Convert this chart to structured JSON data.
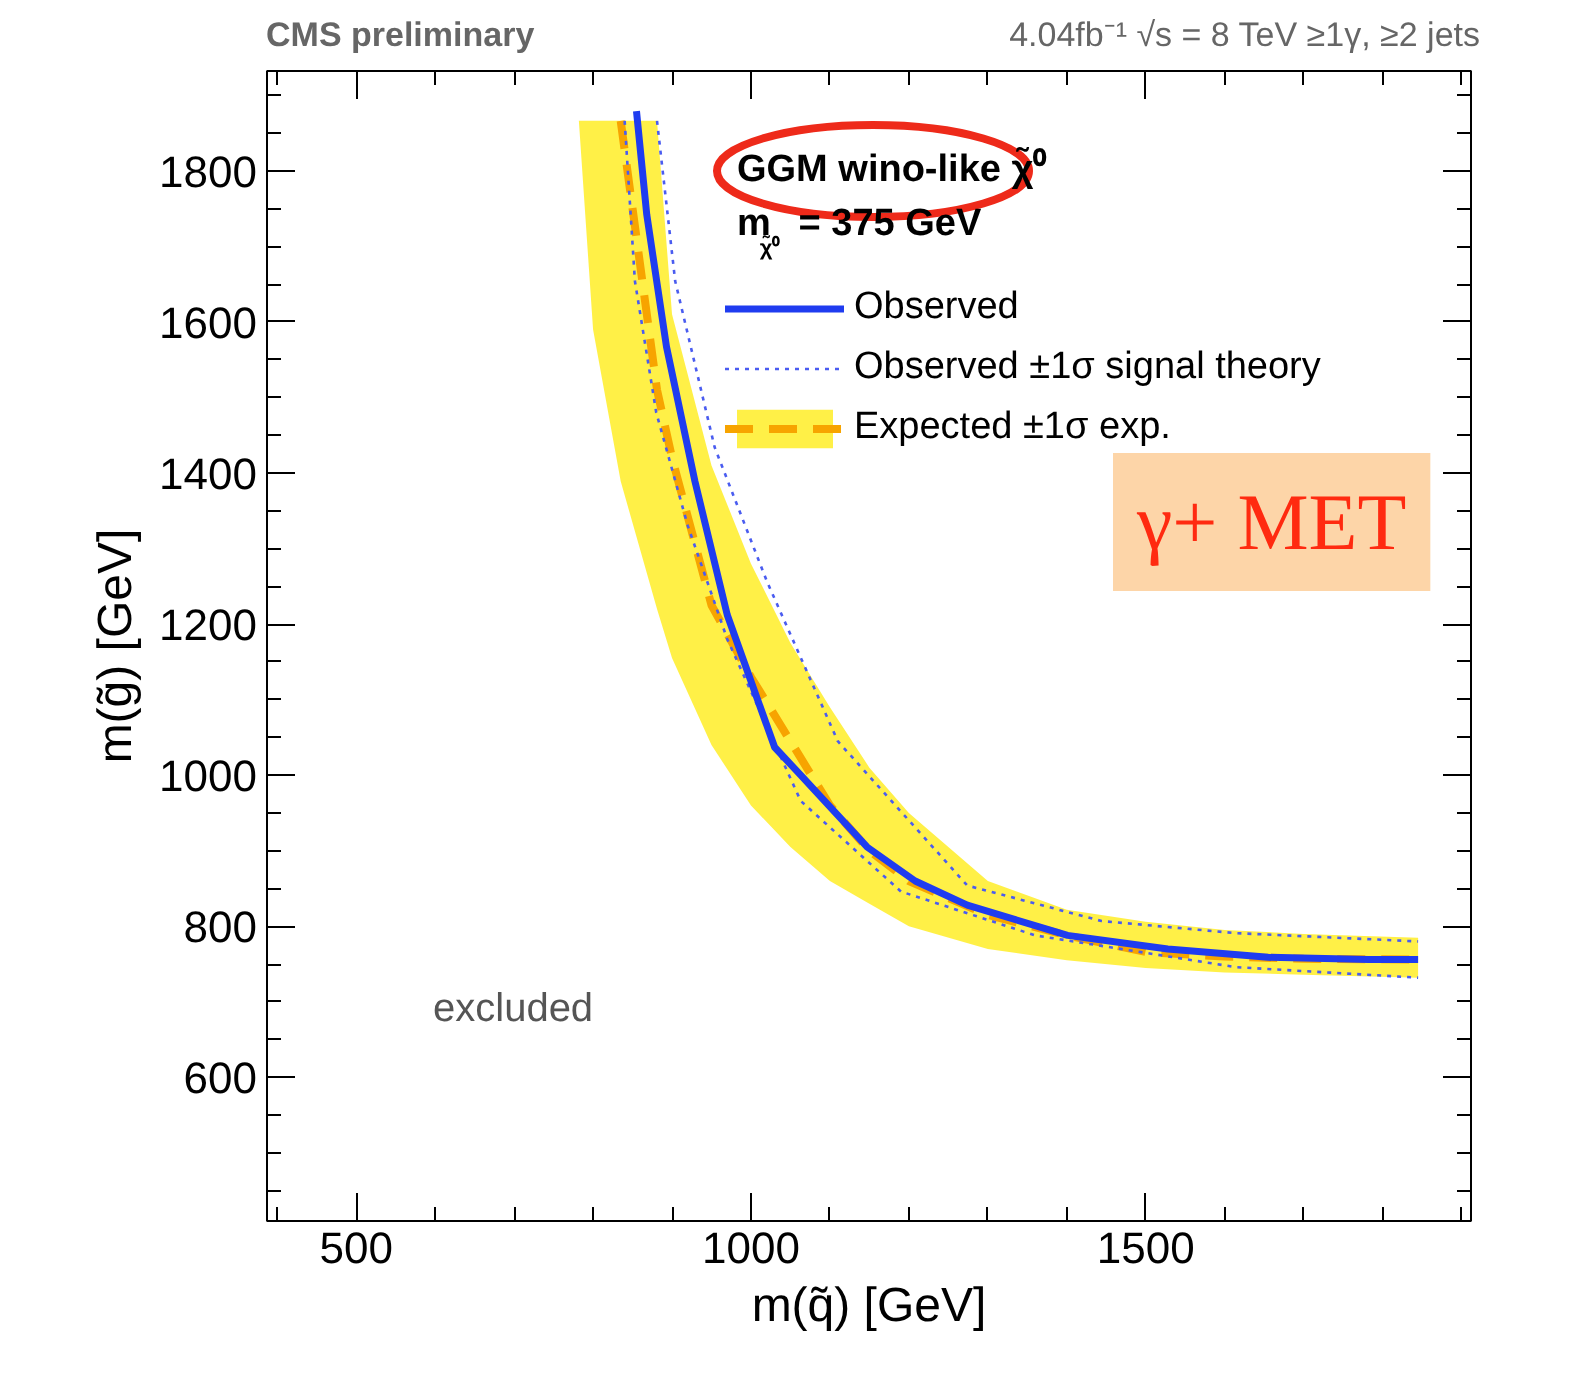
{
  "chart_data": {
    "type": "line",
    "title": "CMS preliminary",
    "subtitle": "4.04fb⁻¹ √s = 8 TeV   ≥1γ, ≥2 jets",
    "xlabel": "m(q̃) [GeV]",
    "ylabel": "m(g̃) [GeV]",
    "xlim": [
      387,
      1912
    ],
    "ylim": [
      410,
      1932
    ],
    "xticks": [
      500,
      1000,
      1500
    ],
    "yticks": [
      600,
      800,
      1000,
      1200,
      1400,
      1600,
      1800
    ],
    "grid": false,
    "legend": "top right",
    "series": [
      {
        "name": "Observed",
        "color": "#1f3cf0",
        "line_style": "solid",
        "x": [
          855,
          868,
          893,
          929,
          970,
          1030,
          1063,
          1147,
          1208,
          1274,
          1401,
          1528,
          1655,
          1782,
          1845
        ],
        "values": [
          1879,
          1742,
          1567,
          1389,
          1212,
          1037,
          1000,
          905,
          860,
          828,
          788,
          770,
          759,
          756,
          756
        ]
      },
      {
        "name": "Observed ±1σ signal theory",
        "color": "#4a5cf0",
        "line_style": "dotted",
        "x": [
          840,
          853,
          880,
          920,
          970,
          1063,
          1190,
          1360,
          1614,
          1845
        ],
        "values": [
          1866,
          1654,
          1480,
          1330,
          1180,
          966,
          846,
          788,
          746,
          732
        ]
      },
      {
        "color": "#4a5cf0",
        "line_style": "dotted",
        "x": [
          881,
          904,
          954,
          1020,
          1110,
          1274,
          1444,
          1614,
          1845
        ],
        "values": [
          1866,
          1654,
          1434,
          1257,
          1045,
          854,
          807,
          791,
          780
        ]
      },
      {
        "name": "Expected ±1σ exp.",
        "color": "#f7a400",
        "line_style": "dashed",
        "x": [
          782,
          800,
          835,
          881,
          900,
          950,
          1000,
          1050,
          1100,
          1150,
          1200,
          1300,
          1400,
          1500,
          1600,
          1700,
          1845
        ],
        "values": [
          null,
          null,
          1866,
          1510,
          1420,
          1225,
          1130,
          1045,
          960,
          900,
          860,
          815,
          788,
          766,
          760,
          757,
          756
        ],
        "lower": [
          1866,
          1590,
          1389,
          1220,
          1155,
          1040,
          960,
          905,
          860,
          830,
          800,
          770,
          755,
          745,
          739,
          736,
          732
        ],
        "upper": [
          1866,
          1866,
          1866,
          1866,
          1610,
          1410,
          1280,
          1175,
          1090,
          1010,
          950,
          860,
          822,
          806,
          795,
          790,
          785
        ]
      }
    ],
    "annotations": [
      "GGM wino-like χ̃⁰",
      "m$_{χ̃⁰}$ = 375 GeV",
      "excluded",
      "γ+ MET"
    ]
  }
}
